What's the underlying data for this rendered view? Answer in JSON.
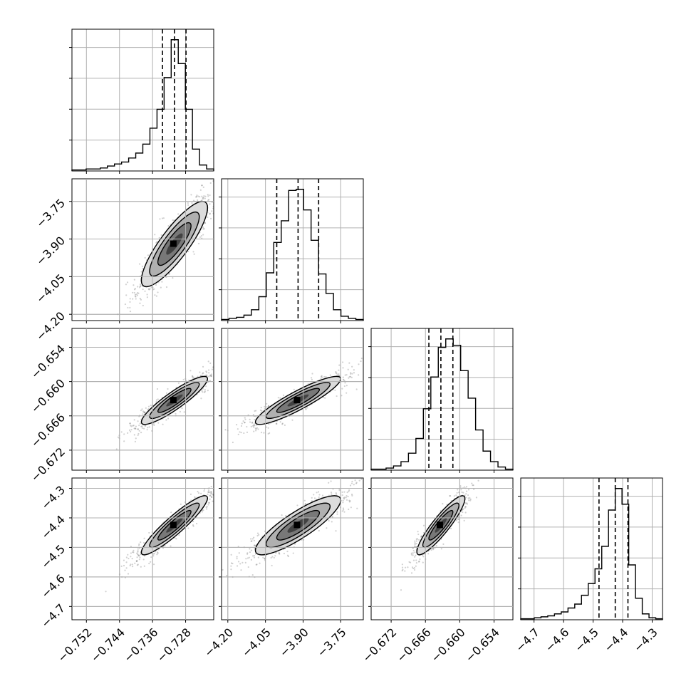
{
  "chart_data": {
    "type": "corner",
    "grid": true,
    "parameters": [
      {
        "range": [
          -0.7555,
          -0.7212
        ],
        "median": -0.7307,
        "q16": -0.7336,
        "q84": -0.7279,
        "sigma": 0.004,
        "ticks": [
          -0.752,
          -0.744,
          -0.736,
          -0.728
        ],
        "tick_labels": [
          "−0.752",
          "−0.744",
          "−0.736",
          "−0.728"
        ],
        "hist_counts": [
          1,
          1,
          2,
          2,
          3,
          5,
          7,
          9,
          13,
          18,
          27,
          43,
          62,
          94,
          132,
          108,
          62,
          22,
          6,
          2
        ]
      },
      {
        "range": [
          -4.225,
          -3.66
        ],
        "median": -3.92,
        "q16": -4.005,
        "q84": -3.838,
        "sigma": 0.085,
        "ticks": [
          -4.2,
          -4.05,
          -3.9,
          -3.75
        ],
        "tick_labels": [
          "−4.20",
          "−4.05",
          "−3.90",
          "−3.75"
        ],
        "hist_counts": [
          1,
          2,
          3,
          5,
          10,
          22,
          44,
          72,
          92,
          120,
          121,
          102,
          74,
          43,
          25,
          10,
          4,
          2,
          1
        ]
      },
      {
        "range": [
          -0.6755,
          -0.6507
        ],
        "median": -0.6633,
        "q16": -0.6654,
        "q84": -0.6612,
        "sigma": 0.0021,
        "ticks": [
          -0.672,
          -0.666,
          -0.66,
          -0.654
        ],
        "tick_labels": [
          "−0.672",
          "−0.666",
          "−0.660",
          "−0.654"
        ],
        "hist_counts": [
          1,
          1,
          2,
          4,
          8,
          16,
          30,
          58,
          88,
          116,
          124,
          118,
          94,
          68,
          38,
          18,
          8,
          3,
          1
        ]
      },
      {
        "range": [
          -4.745,
          -4.265
        ],
        "median": -4.425,
        "q16": -4.48,
        "q84": -4.382,
        "sigma": 0.05,
        "ticks": [
          -4.7,
          -4.6,
          -4.5,
          -4.4,
          -4.3
        ],
        "tick_labels": [
          "−4.7",
          "−4.6",
          "−4.5",
          "−4.4",
          "−4.3"
        ],
        "hist_counts": [
          1,
          1,
          2,
          3,
          4,
          6,
          8,
          12,
          16,
          25,
          37,
          52,
          75,
          112,
          134,
          118,
          56,
          22,
          6,
          2,
          1
        ]
      }
    ],
    "correlations": [
      {
        "pair": [
          0,
          1
        ],
        "rho": 0.85
      },
      {
        "pair": [
          0,
          2
        ],
        "rho": 0.9
      },
      {
        "pair": [
          0,
          3
        ],
        "rho": 0.92
      },
      {
        "pair": [
          1,
          2
        ],
        "rho": 0.9
      },
      {
        "pair": [
          1,
          3
        ],
        "rho": 0.85
      },
      {
        "pair": [
          2,
          3
        ],
        "rho": 0.9
      }
    ],
    "contour_levels_sigma": [
      0.5,
      1.0,
      1.5,
      2.0
    ],
    "scatter_points_per_panel": 900
  }
}
